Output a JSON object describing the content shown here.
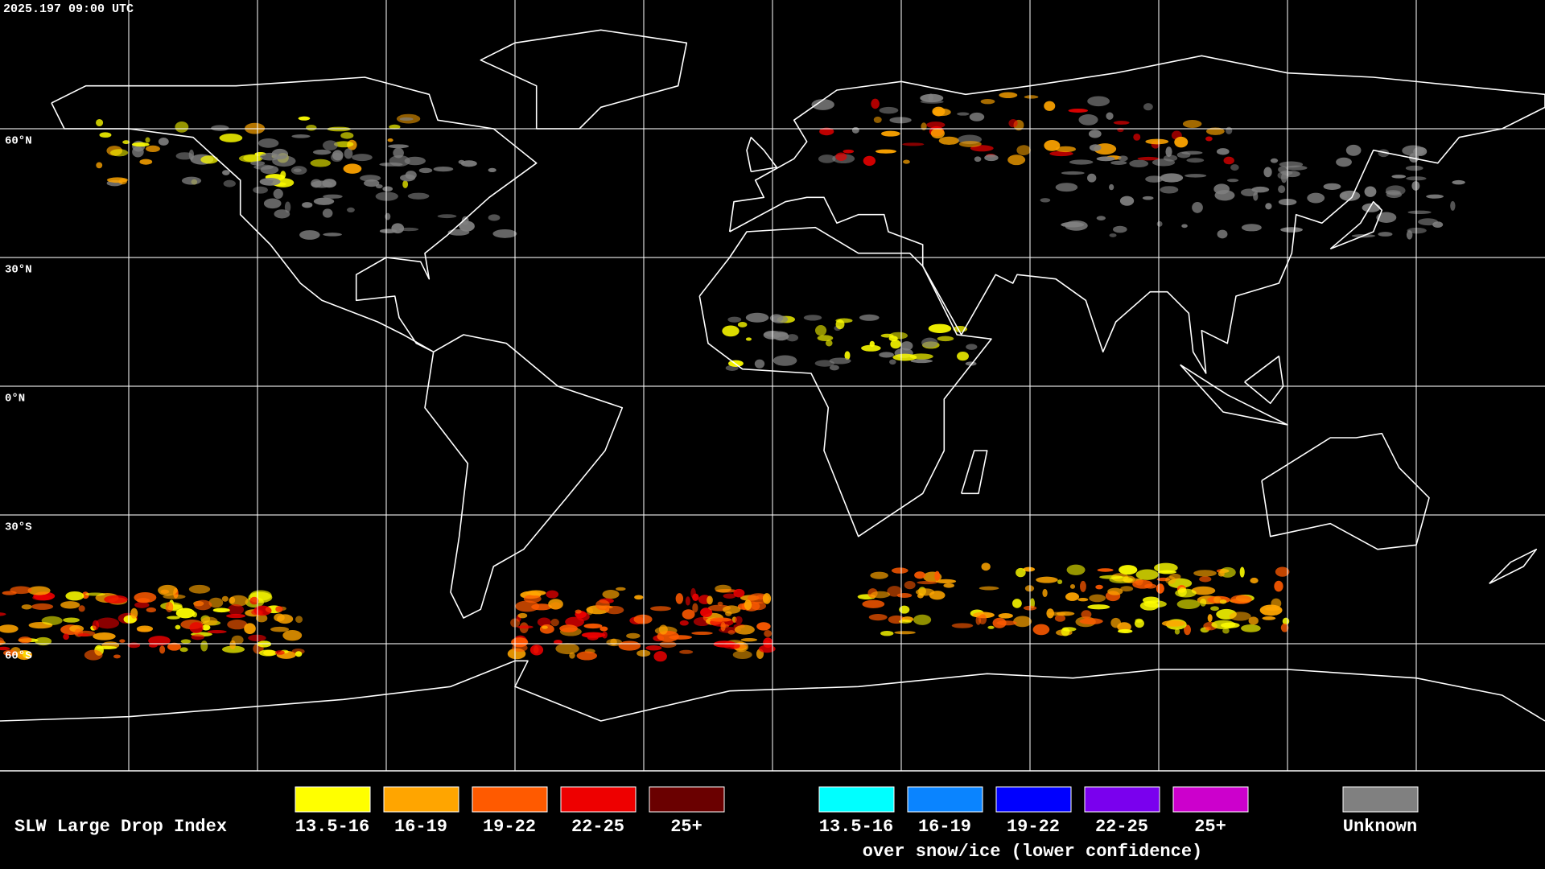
{
  "header": {
    "timestamp": "2025.197 09:00 UTC"
  },
  "map": {
    "latitude_labels": [
      "60°N",
      "30°N",
      "0°N",
      "30°S",
      "60°S"
    ]
  },
  "legend": {
    "title": "SLW Large Drop Index",
    "groups": [
      {
        "items": [
          {
            "label": "13.5-16",
            "color": "#ffff00"
          },
          {
            "label": "16-19",
            "color": "#ffa500"
          },
          {
            "label": "19-22",
            "color": "#ff5a00"
          },
          {
            "label": "22-25",
            "color": "#ee0000"
          },
          {
            "label": "25+",
            "color": "#6a0000"
          }
        ]
      },
      {
        "items": [
          {
            "label": "13.5-16",
            "color": "#00ffff"
          },
          {
            "label": "16-19",
            "color": "#0a84ff"
          },
          {
            "label": "19-22",
            "color": "#0000ff"
          },
          {
            "label": "22-25",
            "color": "#7a00ee"
          },
          {
            "label": "25+",
            "color": "#cc00cc"
          }
        ],
        "note": "over snow/ice (lower confidence)"
      },
      {
        "items": [
          {
            "label": "Unknown",
            "color": "#808080"
          }
        ]
      }
    ]
  }
}
